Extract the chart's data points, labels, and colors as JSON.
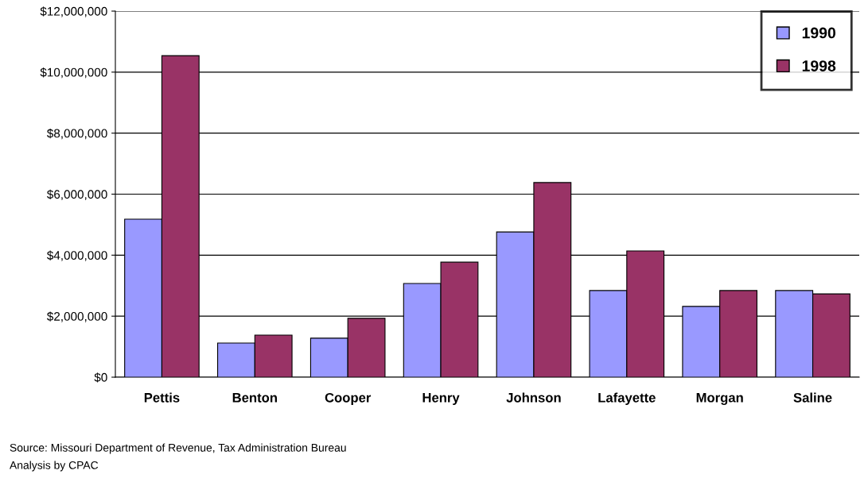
{
  "chart_data": {
    "type": "bar",
    "categories": [
      "Pettis",
      "Benton",
      "Cooper",
      "Henry",
      "Johnson",
      "Lafayette",
      "Morgan",
      "Saline"
    ],
    "series": [
      {
        "name": "1990",
        "color": "#9999ff",
        "values": [
          5180000,
          1120000,
          1280000,
          3070000,
          4760000,
          2840000,
          2320000,
          2840000
        ]
      },
      {
        "name": "1998",
        "color": "#993366",
        "values": [
          10540000,
          1380000,
          1930000,
          3770000,
          6380000,
          4140000,
          2840000,
          2730000
        ]
      }
    ],
    "ylim": [
      0,
      12000000
    ],
    "yticks": [
      {
        "value": 0,
        "label": "$0"
      },
      {
        "value": 2000000,
        "label": "$2,000,000"
      },
      {
        "value": 4000000,
        "label": "$4,000,000"
      },
      {
        "value": 6000000,
        "label": "$6,000,000"
      },
      {
        "value": 8000000,
        "label": "$8,000,000"
      },
      {
        "value": 10000000,
        "label": "$10,000,000"
      },
      {
        "value": 12000000,
        "label": "$12,000,000"
      }
    ],
    "grid": "y",
    "legend": "top right",
    "annotations": [
      "Source: Missouri Department of Revenue, Tax Administration Bureau",
      "Analysis by CPAC"
    ]
  }
}
